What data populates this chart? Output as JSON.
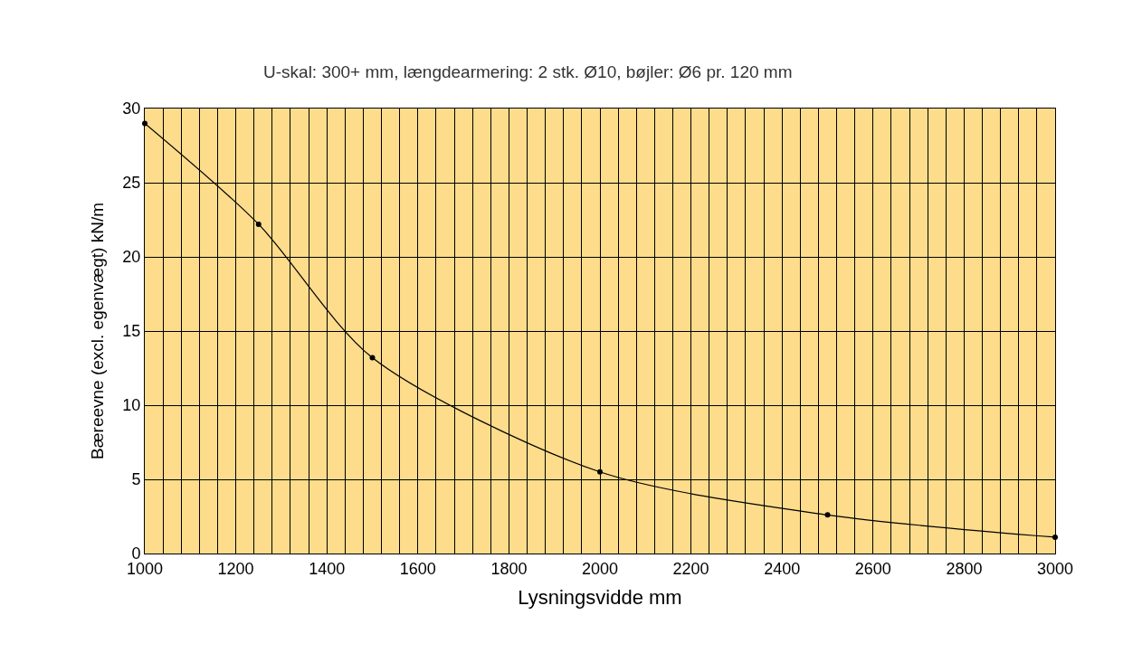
{
  "chart_data": {
    "type": "line",
    "title": "U-skal: 300+ mm, længdearmering: 2 stk. Ø10, bøjler: Ø6 pr. 120 mm",
    "xlabel": "Lysningsvidde mm",
    "ylabel": "Bæreevne (excl. egenvægt) kN/m",
    "x": [
      1000,
      1250,
      1500,
      2000,
      2500,
      3000
    ],
    "series": [
      {
        "color": "#000000",
        "values": [
          29,
          22.2,
          13.2,
          5.5,
          2.6,
          1.1
        ]
      }
    ],
    "xlim": [
      1000,
      3000
    ],
    "ylim": [
      0,
      30
    ],
    "xticks": [
      1000,
      {
        "value": 1040,
        "label": null
      },
      {
        "value": 1080,
        "label": null
      },
      {
        "value": 1120,
        "label": null
      },
      {
        "value": 1160,
        "label": null
      },
      1200,
      {
        "value": 1240,
        "label": null
      },
      {
        "value": 1280,
        "label": null
      },
      {
        "value": 1320,
        "label": null
      },
      {
        "value": 1360,
        "label": null
      },
      1400,
      {
        "value": 1440,
        "label": null
      },
      {
        "value": 1480,
        "label": null
      },
      {
        "value": 1520,
        "label": null
      },
      {
        "value": 1560,
        "label": null
      },
      1600,
      {
        "value": 1640,
        "label": null
      },
      {
        "value": 1680,
        "label": null
      },
      {
        "value": 1720,
        "label": null
      },
      {
        "value": 1760,
        "label": null
      },
      1800,
      {
        "value": 1840,
        "label": null
      },
      {
        "value": 1880,
        "label": null
      },
      {
        "value": 1920,
        "label": null
      },
      {
        "value": 1960,
        "label": null
      },
      2000,
      {
        "value": 2040,
        "label": null
      },
      {
        "value": 2080,
        "label": null
      },
      {
        "value": 2120,
        "label": null
      },
      {
        "value": 2160,
        "label": null
      },
      2200,
      {
        "value": 2240,
        "label": null
      },
      {
        "value": 2280,
        "label": null
      },
      {
        "value": 2320,
        "label": null
      },
      {
        "value": 2360,
        "label": null
      },
      2400,
      {
        "value": 2440,
        "label": null
      },
      {
        "value": 2480,
        "label": null
      },
      {
        "value": 2520,
        "label": null
      },
      {
        "value": 2560,
        "label": null
      },
      2600,
      {
        "value": 2640,
        "label": null
      },
      {
        "value": 2680,
        "label": null
      },
      {
        "value": 2720,
        "label": null
      },
      {
        "value": 2760,
        "label": null
      },
      2800,
      {
        "value": 2840,
        "label": null
      },
      {
        "value": 2880,
        "label": null
      },
      {
        "value": 2920,
        "label": null
      },
      {
        "value": 2960,
        "label": null
      },
      3000
    ],
    "yticks": [
      0,
      5,
      10,
      15,
      20,
      25,
      30
    ],
    "grid": true,
    "marker": "circle",
    "line_style": "solid"
  }
}
